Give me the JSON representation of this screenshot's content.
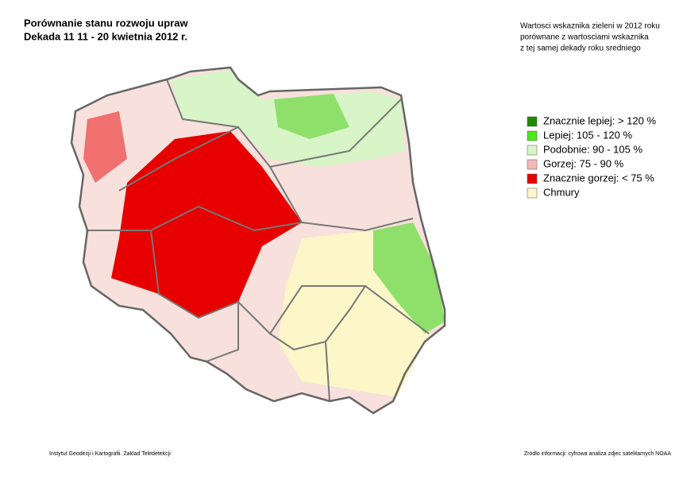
{
  "header": {
    "title_lines": [
      "Porównanie stanu rozwoju upraw",
      "Dekada 11  11 - 20 kwietnia 2012 r."
    ],
    "description_lines": [
      "Wartosci wskaznika zieleni w 2012 roku",
      "porównane z wartosciami wskaznika",
      "z tej samej dekady roku sredniego"
    ]
  },
  "legend": {
    "items": [
      {
        "label": "Znacznie lepiej: > 120 %",
        "color": "#1f8a00"
      },
      {
        "label": "Lepiej: 105 - 120 %",
        "color": "#4ee61a"
      },
      {
        "label": "Podobnie: 90 - 105 %",
        "color": "#d8f5c8"
      },
      {
        "label": "Gorzej: 75 - 90 %",
        "color": "#f2b8b8"
      },
      {
        "label": "Znacznie gorzej: < 75 %",
        "color": "#e60000"
      },
      {
        "label": "Chmury",
        "color": "#fdf6c8"
      }
    ]
  },
  "footer": {
    "left": "Instytut Geodezji i Kartografii. Zaklad Teledetekcji",
    "right": "Zródlo informacji: cyfrowa analiza zdjec satelitarnych NOAA"
  }
}
